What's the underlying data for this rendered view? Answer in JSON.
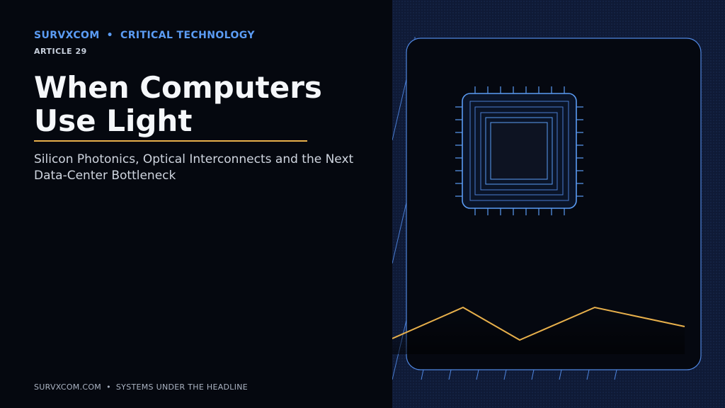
{
  "header": {
    "brand": "SURVXCOM",
    "separator": "•",
    "section": "CRITICAL TECHNOLOGY",
    "article": "ARTICLE 29"
  },
  "headline": {
    "title": "When Computers Use Light",
    "subtitle": "Silicon Photonics, Optical Interconnects and the Next Data-Center Bottleneck"
  },
  "footer": {
    "site": "SURVXCOM.COM",
    "separator": "•",
    "tagline": "SYSTEMS UNDER THE HEADLINE"
  },
  "illustration": {
    "subject": "chip-icon",
    "accent_blue": "#5b9cf4",
    "accent_gold": "#e8b04b",
    "card_background": "#050810",
    "panel_background": "#0f1a36"
  }
}
